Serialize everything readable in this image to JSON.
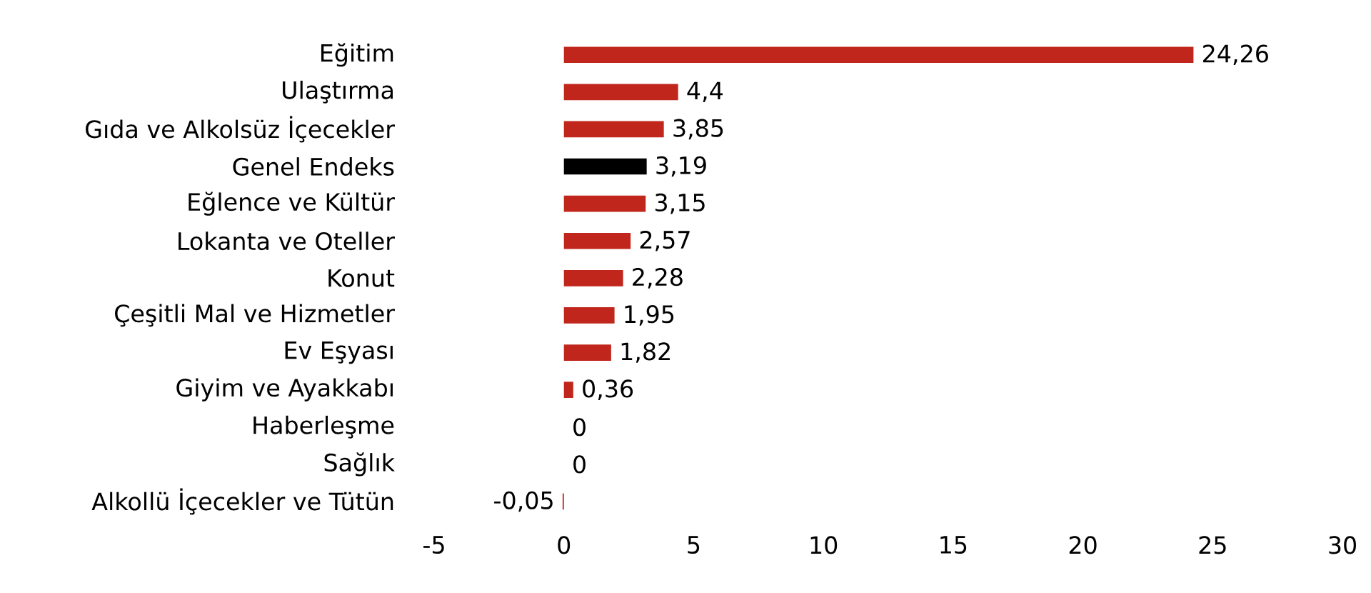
{
  "chart_data": {
    "type": "bar",
    "orientation": "horizontal",
    "categories": [
      "Eğitim",
      "Ulaştırma",
      "Gıda ve Alkolsüz İçecekler",
      "Genel Endeks",
      "Eğlence ve Kültür",
      "Lokanta ve Oteller",
      "Konut",
      "Çeşitli Mal ve Hizmetler",
      "Ev Eşyası",
      "Giyim ve Ayakkabı",
      "Haberleşme",
      "Sağlık",
      "Alkollü İçecekler ve Tütün"
    ],
    "values": [
      24.26,
      4.4,
      3.85,
      3.19,
      3.15,
      2.57,
      2.28,
      1.95,
      1.82,
      0.36,
      0,
      0,
      -0.05
    ],
    "value_labels": [
      "24,26",
      "4,4",
      "3,85",
      "3,19",
      "3,15",
      "2,57",
      "2,28",
      "1,95",
      "1,82",
      "0,36",
      "0",
      "0",
      "-0,05"
    ],
    "colors": [
      "#c0261c",
      "#c0261c",
      "#c0261c",
      "#000000",
      "#c0261c",
      "#c0261c",
      "#c0261c",
      "#c0261c",
      "#c0261c",
      "#c0261c",
      "#c0261c",
      "#c0261c",
      "#c0261c"
    ],
    "xlim": [
      -5,
      30
    ],
    "xticks": [
      -5,
      0,
      5,
      10,
      15,
      20,
      25,
      30
    ]
  }
}
